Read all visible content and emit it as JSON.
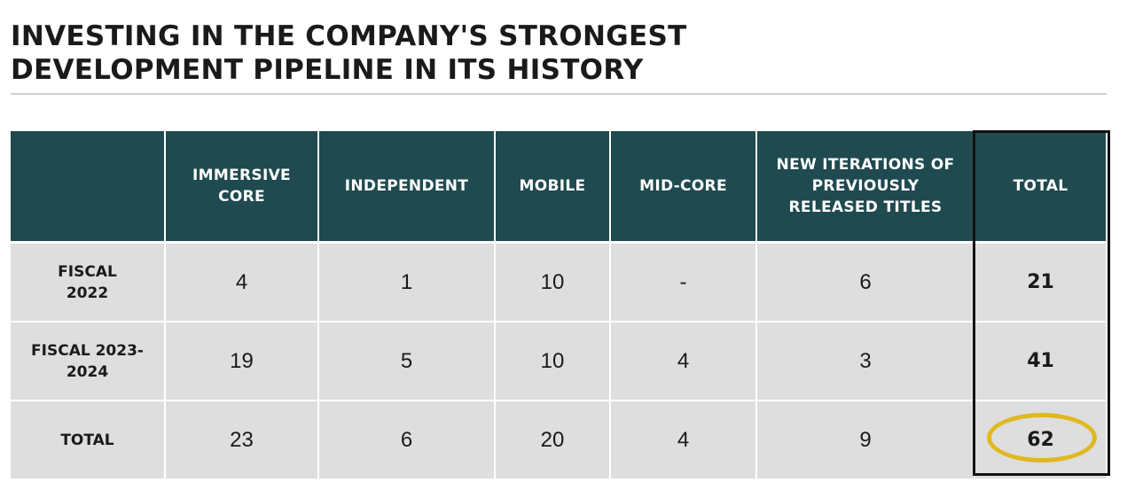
{
  "title": {
    "line1": "INVESTING IN THE COMPANY'S STRONGEST",
    "line2": "DEVELOPMENT PIPELINE IN ITS HISTORY"
  },
  "table": {
    "headers": {
      "corner": "",
      "immersive_core": "IMMERSIVE CORE",
      "independent": "INDEPENDENT",
      "mobile": "MOBILE",
      "mid_core": "MID-CORE",
      "new_iterations": "NEW ITERATIONS OF PREVIOUSLY RELEASED TITLES",
      "total": "TOTAL"
    },
    "rows": [
      {
        "label": "FISCAL 2022",
        "immersive_core": "4",
        "independent": "1",
        "mobile": "10",
        "mid_core": "-",
        "new_iterations": "6",
        "total": "21"
      },
      {
        "label": "FISCAL 2023-2024",
        "immersive_core": "19",
        "independent": "5",
        "mobile": "10",
        "mid_core": "4",
        "new_iterations": "3",
        "total": "41"
      },
      {
        "label": "TOTAL",
        "immersive_core": "23",
        "independent": "6",
        "mobile": "20",
        "mid_core": "4",
        "new_iterations": "9",
        "total": "62"
      }
    ]
  },
  "colors": {
    "header_bg": "#1f4a4f",
    "cell_bg": "#dedede",
    "highlight_circle": "#e0b820",
    "total_box_border": "#111111"
  }
}
